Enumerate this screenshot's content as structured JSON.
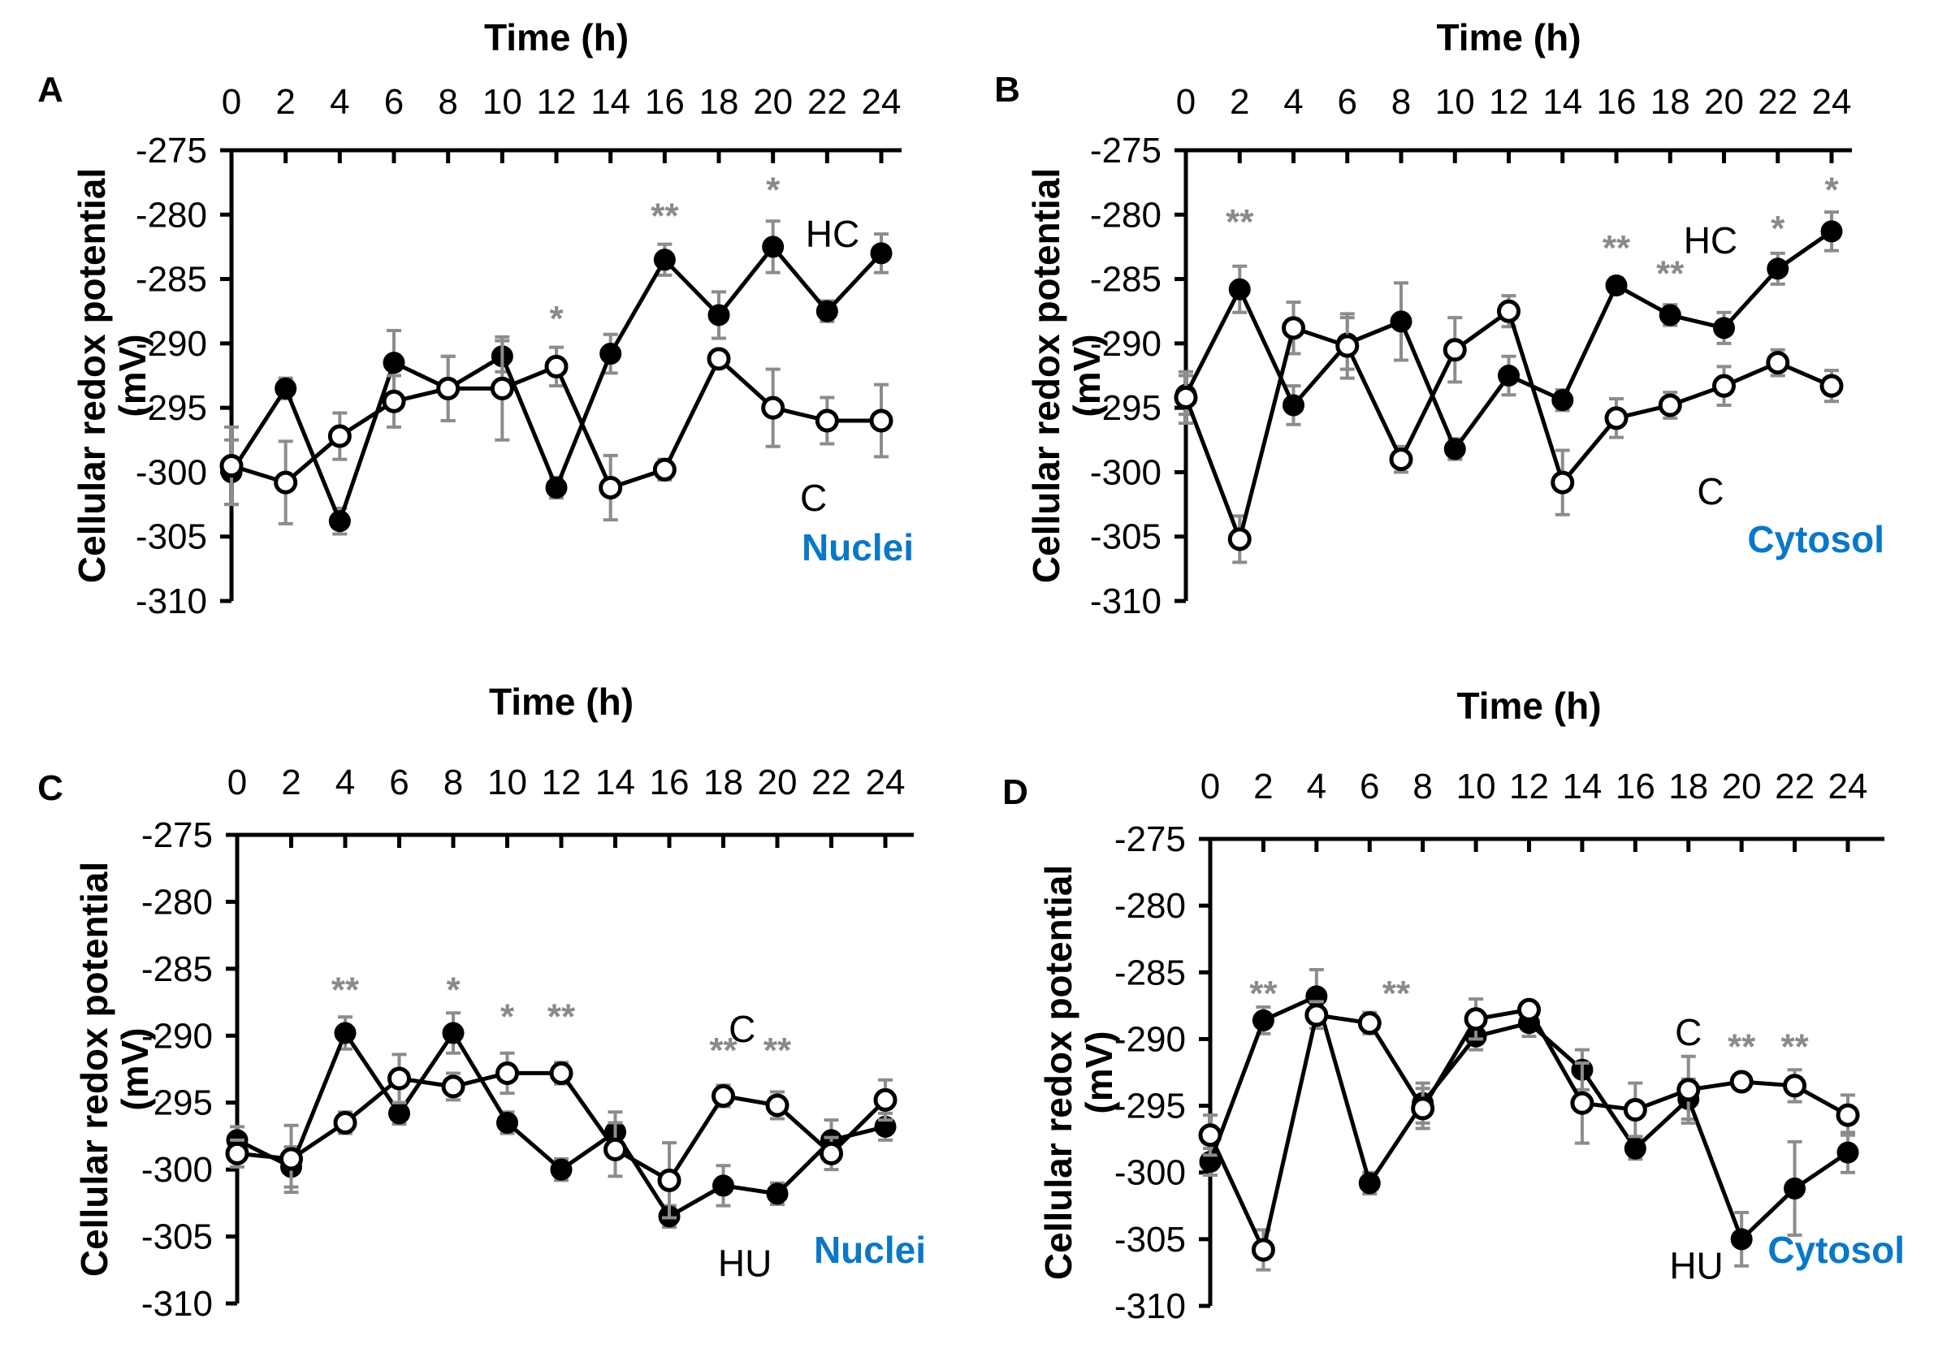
{
  "chart_data": [
    {
      "type": "line",
      "panel_label": "A",
      "title": "Time (h)",
      "xlabel": "Time (h)",
      "ylabel": "Cellular redox potential (mV)",
      "region": "Nuclei",
      "x": [
        0,
        2,
        4,
        6,
        8,
        10,
        12,
        14,
        16,
        18,
        20,
        22,
        24
      ],
      "x_tick_labels": [
        "0",
        "2",
        "4",
        "6",
        "8",
        "10",
        "12",
        "14",
        "16",
        "18",
        "20",
        "22",
        "24"
      ],
      "y_tick_labels": [
        "-275",
        "-280",
        "-285",
        "-290",
        "-295",
        "-300",
        "-305",
        "-310"
      ],
      "xlim": [
        0,
        24
      ],
      "ylim": [
        -310,
        -275
      ],
      "series": [
        {
          "name": "HC",
          "marker": "filled",
          "values": [
            -300,
            -293.5,
            -303.8,
            -291.5,
            -293.5,
            -291,
            -301.2,
            -290.8,
            -283.5,
            -287.8,
            -282.5,
            -287.5,
            -283
          ],
          "errors": [
            2.5,
            0.8,
            1,
            2.5,
            2.5,
            1.2,
            0.8,
            1.5,
            1.2,
            1.8,
            2,
            0.8,
            1.5
          ]
        },
        {
          "name": "C",
          "marker": "open",
          "values": [
            -299.5,
            -300.8,
            -297.2,
            -294.5,
            -293.5,
            -293.5,
            -291.8,
            -301.2,
            -299.8,
            -291.2,
            -295,
            -296,
            -296
          ],
          "errors": [
            3,
            3.2,
            1.8,
            2,
            2.5,
            4,
            1.5,
            2.5,
            0.8,
            0.5,
            3,
            1.8,
            2.8
          ]
        }
      ],
      "significance": [
        {
          "x": 12,
          "text": "*",
          "y": -288
        },
        {
          "x": 16,
          "text": "**",
          "y": -280
        },
        {
          "x": 20,
          "text": "*",
          "y": -278
        }
      ],
      "series_labels": [
        {
          "text": "HC",
          "x": 22.2,
          "y": -281.5
        },
        {
          "text": "C",
          "x": 21.5,
          "y": -302
        }
      ]
    },
    {
      "type": "line",
      "panel_label": "B",
      "title": "Time (h)",
      "xlabel": "Time (h)",
      "ylabel": "Cellular redox potential (mV)",
      "region": "Cytosol",
      "x": [
        0,
        2,
        4,
        6,
        8,
        10,
        12,
        14,
        16,
        18,
        20,
        22,
        24
      ],
      "x_tick_labels": [
        "0",
        "2",
        "4",
        "6",
        "8",
        "10",
        "12",
        "14",
        "16",
        "18",
        "20",
        "22",
        "24"
      ],
      "y_tick_labels": [
        "-275",
        "-280",
        "-285",
        "-290",
        "-295",
        "-300",
        "-305",
        "-310"
      ],
      "xlim": [
        0,
        24
      ],
      "ylim": [
        -310,
        -275
      ],
      "series": [
        {
          "name": "HC",
          "marker": "filled",
          "values": [
            -294,
            -285.8,
            -294.8,
            -290,
            -288.3,
            -298.2,
            -292.5,
            -294.4,
            -285.5,
            -287.8,
            -288.8,
            -284.2,
            -281.3
          ],
          "errors": [
            1.5,
            1.8,
            1.5,
            2,
            3,
            0.8,
            1.5,
            0.8,
            0.6,
            0.8,
            1.2,
            1.2,
            1.5
          ]
        },
        {
          "name": "C",
          "marker": "open",
          "values": [
            -294.2,
            -305.2,
            -288.8,
            -290.2,
            -299,
            -290.5,
            -287.5,
            -300.8,
            -295.8,
            -294.8,
            -293.3,
            -291.5,
            -293.3
          ],
          "errors": [
            2,
            1.8,
            2,
            2.5,
            1,
            2.5,
            1.2,
            2.5,
            1.5,
            1,
            1.5,
            1,
            1.2
          ]
        }
      ],
      "significance": [
        {
          "x": 2,
          "text": "**",
          "y": -280.5
        },
        {
          "x": 16,
          "text": "**",
          "y": -282.5
        },
        {
          "x": 18,
          "text": "**",
          "y": -284.5
        },
        {
          "x": 22,
          "text": "*",
          "y": -281
        },
        {
          "x": 24,
          "text": "*",
          "y": -278
        }
      ],
      "series_labels": [
        {
          "text": "HC",
          "x": 19.5,
          "y": -282
        },
        {
          "text": "C",
          "x": 19.5,
          "y": -301.5
        }
      ]
    },
    {
      "type": "line",
      "panel_label": "C",
      "title": "Time (h)",
      "xlabel": "Time (h)",
      "ylabel": "Cellular redox potential (mV)",
      "region": "Nuclei",
      "x": [
        0,
        2,
        4,
        6,
        8,
        10,
        12,
        14,
        16,
        18,
        20,
        22,
        24
      ],
      "x_tick_labels": [
        "0",
        "2",
        "4",
        "6",
        "8",
        "10",
        "12",
        "14",
        "16",
        "18",
        "20",
        "22",
        "24"
      ],
      "y_tick_labels": [
        "-275",
        "-280",
        "-285",
        "-290",
        "-295",
        "-300",
        "-305",
        "-310"
      ],
      "xlim": [
        0,
        24
      ],
      "ylim": [
        -310,
        -275
      ],
      "series": [
        {
          "name": "HU",
          "marker": "filled",
          "values": [
            -297.8,
            -299.8,
            -289.8,
            -295.8,
            -289.8,
            -296.5,
            -300,
            -297.2,
            -303.5,
            -301.2,
            -301.8,
            -297.8,
            -296.8
          ],
          "errors": [
            1,
            1.5,
            1.2,
            0.8,
            1.5,
            0.8,
            0.8,
            1.5,
            0.8,
            1.5,
            0.8,
            1.5,
            1
          ]
        },
        {
          "name": "C",
          "marker": "open",
          "values": [
            -298.8,
            -299.2,
            -296.5,
            -293.2,
            -293.8,
            -292.8,
            -292.8,
            -298.5,
            -300.8,
            -294.5,
            -295.2,
            -298.8,
            -294.8
          ],
          "errors": [
            1,
            2.5,
            0.8,
            1.8,
            1,
            1.5,
            0.8,
            2,
            2.8,
            0.8,
            1,
            1.2,
            1.5
          ]
        }
      ],
      "significance": [
        {
          "x": 4,
          "text": "**",
          "y": -286.5
        },
        {
          "x": 8,
          "text": "*",
          "y": -286.5
        },
        {
          "x": 10,
          "text": "*",
          "y": -288.5
        },
        {
          "x": 12,
          "text": "**",
          "y": -288.5
        },
        {
          "x": 18,
          "text": "**",
          "y": -291
        },
        {
          "x": 20,
          "text": "**",
          "y": -291
        }
      ],
      "series_labels": [
        {
          "text": "C",
          "x": 18.7,
          "y": -289.5
        },
        {
          "text": "HU",
          "x": 18.8,
          "y": -307
        }
      ]
    },
    {
      "type": "line",
      "panel_label": "D",
      "title": "Time (h)",
      "xlabel": "Time (h)",
      "ylabel": "Cellular redox potential (mV)",
      "region": "Cytosol",
      "x": [
        0,
        2,
        4,
        6,
        8,
        10,
        12,
        14,
        16,
        18,
        20,
        22,
        24
      ],
      "x_tick_labels": [
        "0",
        "2",
        "4",
        "6",
        "8",
        "10",
        "12",
        "14",
        "16",
        "18",
        "20",
        "22",
        "24"
      ],
      "y_tick_labels": [
        "-275",
        "-280",
        "-285",
        "-290",
        "-295",
        "-300",
        "-305",
        "-310"
      ],
      "xlim": [
        0,
        24
      ],
      "ylim": [
        -310,
        -275
      ],
      "series": [
        {
          "name": "HU",
          "marker": "filled",
          "values": [
            -299.2,
            -288.6,
            -286.8,
            -300.8,
            -294.8,
            -289.8,
            -288.8,
            -292.3,
            -298.2,
            -294.5,
            -305,
            -301.2,
            -298.5
          ],
          "errors": [
            1,
            1,
            2,
            0.8,
            1.5,
            1,
            1,
            1.5,
            0.8,
            1.5,
            2,
            3.5,
            1.5
          ]
        },
        {
          "name": "C",
          "marker": "open",
          "values": [
            -297.2,
            -305.8,
            -288.2,
            -288.8,
            -295.2,
            -288.5,
            -287.8,
            -294.8,
            -295.3,
            -293.8,
            -293.2,
            -293.5,
            -295.7
          ],
          "errors": [
            1.5,
            1.5,
            1,
            0.8,
            1.5,
            1.5,
            0.5,
            3,
            2,
            2.5,
            0.5,
            1.2,
            1.5
          ]
        }
      ],
      "significance": [
        {
          "x": 2,
          "text": "**",
          "y": -286.5
        },
        {
          "x": 7,
          "text": "**",
          "y": -286.5
        },
        {
          "x": 20,
          "text": "**",
          "y": -290.5
        },
        {
          "x": 22,
          "text": "**",
          "y": -290.5
        }
      ],
      "series_labels": [
        {
          "text": "C",
          "x": 18,
          "y": -289.5
        },
        {
          "text": "HU",
          "x": 18.3,
          "y": -307
        }
      ]
    }
  ]
}
